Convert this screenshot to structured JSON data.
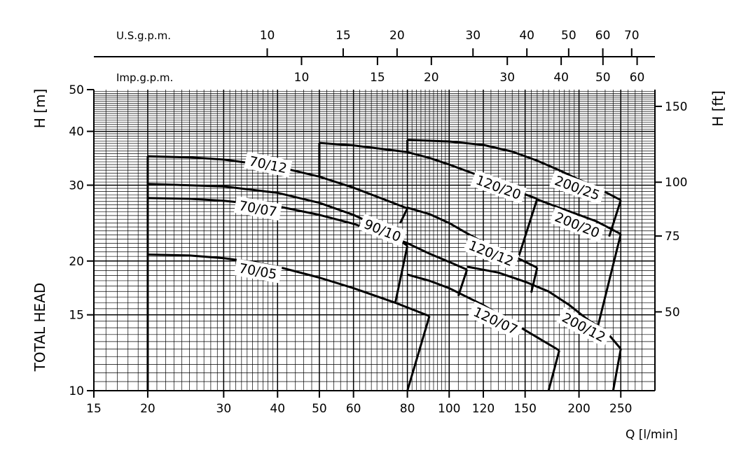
{
  "chart_data": {
    "type": "line",
    "xscale": "log",
    "yscale": "log",
    "xlabel": "Q [l/min]",
    "ylabel_left_top": "H [m]",
    "ylabel_left_bottom": "TOTAL HEAD",
    "ylabel_right": "H [ft]",
    "xlim": [
      15,
      300
    ],
    "ylim": [
      10,
      50
    ],
    "x_ticks": [
      15,
      20,
      30,
      40,
      50,
      60,
      80,
      100,
      120,
      150,
      200,
      250
    ],
    "x_tick_labels": [
      "15",
      "20",
      "30",
      "40",
      "50",
      "60",
      "80",
      "100",
      "120",
      "150",
      "200",
      "250"
    ],
    "y_ticks": [
      10,
      15,
      20,
      30,
      40,
      50
    ],
    "y_tick_labels": [
      "10",
      "15",
      "20",
      "30",
      "40",
      "50"
    ],
    "right_axis": {
      "label": "H [ft]",
      "ticks_ft": [
        50,
        75,
        100,
        150
      ],
      "tick_labels": [
        "50",
        "75",
        "100",
        "150"
      ]
    },
    "top_axes": [
      {
        "label": "U.S.g.p.m.",
        "ticks": [
          10,
          15,
          20,
          30,
          40,
          50,
          60,
          70
        ],
        "tick_labels": [
          "10",
          "15",
          "20",
          "30",
          "40",
          "50",
          "60",
          "70"
        ]
      },
      {
        "label": "Imp.g.p.m.",
        "ticks": [
          10,
          15,
          20,
          30,
          40,
          50,
          60
        ],
        "tick_labels": [
          "10",
          "15",
          "20",
          "30",
          "40",
          "50",
          "60"
        ]
      }
    ],
    "grid": true,
    "series": [
      {
        "name": "70/05",
        "x": [
          20,
          25,
          30,
          35,
          40,
          50,
          60,
          75,
          90
        ],
        "y": [
          20.7,
          20.6,
          20.3,
          19.9,
          19.4,
          18.3,
          17.3,
          16.0,
          14.9
        ]
      },
      {
        "name": "70/07",
        "x": [
          20,
          25,
          30,
          40,
          50,
          60,
          70,
          80,
          90,
          100,
          110
        ],
        "y": [
          28.0,
          27.9,
          27.6,
          26.8,
          25.6,
          24.4,
          23.2,
          22.0,
          20.8,
          19.9,
          19.1
        ]
      },
      {
        "name": "70/12",
        "x": [
          20,
          25,
          30,
          40,
          50,
          60,
          70,
          80
        ],
        "y": [
          35.0,
          34.8,
          34.4,
          33.1,
          31.4,
          29.6,
          27.9,
          26.5
        ]
      },
      {
        "name": "90/10",
        "x": [
          20,
          30,
          40,
          50,
          60,
          70,
          80
        ],
        "y": [
          30.2,
          29.8,
          28.8,
          27.3,
          25.6,
          23.8,
          21.7
        ]
      },
      {
        "name": "120/07",
        "x": [
          80,
          90,
          100,
          110,
          120,
          140,
          160,
          180
        ],
        "y": [
          18.6,
          18.0,
          17.3,
          16.5,
          15.8,
          14.4,
          13.3,
          12.4
        ]
      },
      {
        "name": "120/12",
        "x": [
          80,
          90,
          100,
          110,
          120,
          140,
          160
        ],
        "y": [
          26.6,
          25.7,
          24.5,
          23.2,
          22.1,
          20.6,
          19.3
        ]
      },
      {
        "name": "120/20",
        "x": [
          50,
          60,
          70,
          80,
          90,
          100,
          120,
          140,
          160
        ],
        "y": [
          37.6,
          37.1,
          36.4,
          35.8,
          34.7,
          33.5,
          31.3,
          29.3,
          27.9
        ]
      },
      {
        "name": "200/12",
        "x": [
          110,
          130,
          150,
          170,
          190,
          210,
          230,
          250
        ],
        "y": [
          19.4,
          18.8,
          17.9,
          17.0,
          15.8,
          14.6,
          13.8,
          12.5
        ]
      },
      {
        "name": "200/20",
        "x": [
          160,
          180,
          200,
          220,
          250
        ],
        "y": [
          27.8,
          26.6,
          25.6,
          24.7,
          23.1
        ]
      },
      {
        "name": "200/25",
        "x": [
          80,
          100,
          120,
          140,
          160,
          180,
          200,
          220,
          250
        ],
        "y": [
          38.2,
          37.9,
          37.2,
          35.9,
          34.2,
          32.5,
          30.9,
          29.6,
          27.7
        ]
      }
    ],
    "envelope_lines": [
      {
        "x": [
          20,
          20
        ],
        "y": [
          10,
          35.0
        ]
      },
      {
        "x": [
          50,
          50
        ],
        "y": [
          31.4,
          37.6
        ]
      },
      {
        "x": [
          80,
          80
        ],
        "y": [
          35.8,
          38.2
        ]
      },
      {
        "x": [
          75,
          80
        ],
        "y": [
          16.0,
          21.7
        ]
      },
      {
        "x": [
          77,
          80
        ],
        "y": [
          24.5,
          26.5
        ]
      },
      {
        "x": [
          80,
          90
        ],
        "y": [
          10,
          14.9
        ]
      },
      {
        "x": [
          105,
          110
        ],
        "y": [
          16.6,
          19.1
        ]
      },
      {
        "x": [
          145,
          160
        ],
        "y": [
          20.5,
          27.9
        ]
      },
      {
        "x": [
          155,
          160
        ],
        "y": [
          16.9,
          19.3
        ]
      },
      {
        "x": [
          170,
          180
        ],
        "y": [
          10,
          12.4
        ]
      },
      {
        "x": [
          220,
          250
        ],
        "y": [
          13.8,
          23.1
        ]
      },
      {
        "x": [
          235,
          250
        ],
        "y": [
          22.8,
          27.7
        ]
      },
      {
        "x": [
          240,
          250
        ],
        "y": [
          10,
          12.5
        ]
      }
    ],
    "curve_labels": [
      "70/12",
      "70/07",
      "70/05",
      "90/10",
      "120/20",
      "120/12",
      "120/07",
      "200/25",
      "200/20",
      "200/12"
    ]
  }
}
